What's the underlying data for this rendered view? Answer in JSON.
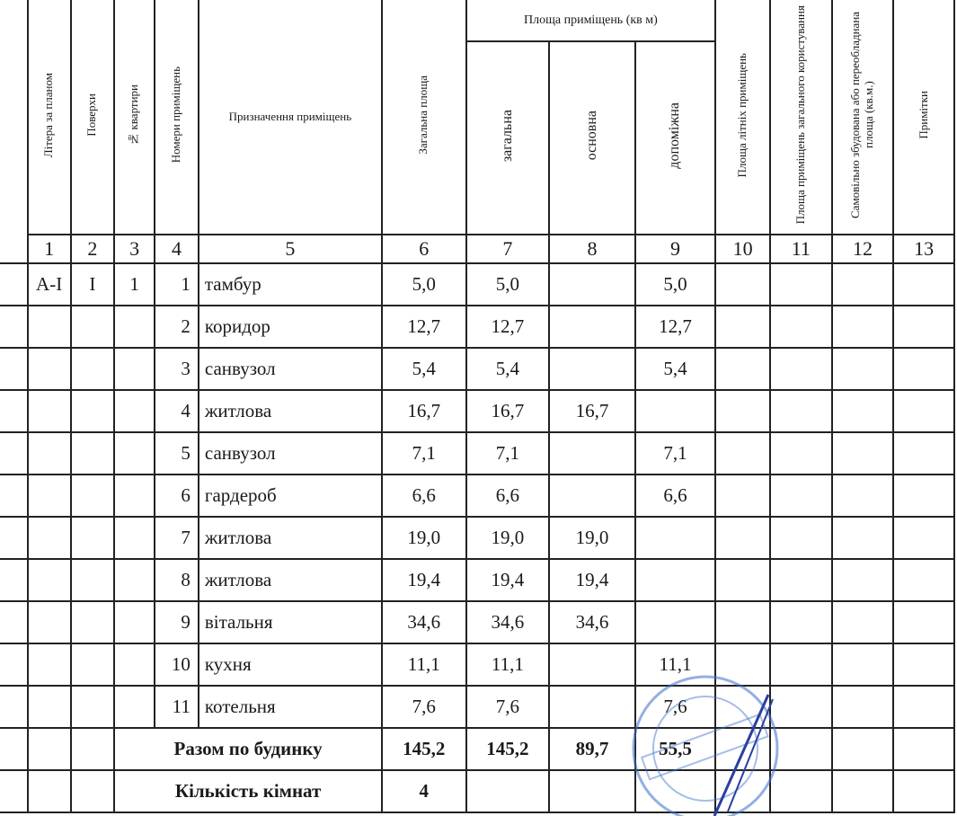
{
  "headers": {
    "c1": "Літера за планом",
    "c2": "Поверхи",
    "c3": "№ квартири",
    "c4": "Номери приміщень",
    "c5": "Призначення приміщень",
    "c6": "Загальна площа",
    "group": "Площа приміщень  (кв м)",
    "c7": "загальна",
    "c8": "основна",
    "c9": "допоміжна",
    "c10": "Площа літніх приміщень",
    "c11": "Площа  приміщень загального користування",
    "c12": "Самовільно збудована або переобладнана площа (кв.м.)",
    "c13": "Примітки"
  },
  "column_numbers": [
    "1",
    "2",
    "3",
    "4",
    "5",
    "6",
    "7",
    "8",
    "9",
    "10",
    "11",
    "12",
    "13"
  ],
  "rows": [
    {
      "litera": "А-І",
      "floor": "І",
      "apt": "1",
      "num": "1",
      "name": "тамбур",
      "total": "5,0",
      "general": "5,0",
      "main": "",
      "aux": "5,0"
    },
    {
      "litera": "",
      "floor": "",
      "apt": "",
      "num": "2",
      "name": "коридор",
      "total": "12,7",
      "general": "12,7",
      "main": "",
      "aux": "12,7"
    },
    {
      "litera": "",
      "floor": "",
      "apt": "",
      "num": "3",
      "name": "санвузол",
      "total": "5,4",
      "general": "5,4",
      "main": "",
      "aux": "5,4"
    },
    {
      "litera": "",
      "floor": "",
      "apt": "",
      "num": "4",
      "name": "житлова",
      "total": "16,7",
      "general": "16,7",
      "main": "16,7",
      "aux": ""
    },
    {
      "litera": "",
      "floor": "",
      "apt": "",
      "num": "5",
      "name": "санвузол",
      "total": "7,1",
      "general": "7,1",
      "main": "",
      "aux": "7,1"
    },
    {
      "litera": "",
      "floor": "",
      "apt": "",
      "num": "6",
      "name": "гардероб",
      "total": "6,6",
      "general": "6,6",
      "main": "",
      "aux": "6,6"
    },
    {
      "litera": "",
      "floor": "",
      "apt": "",
      "num": "7",
      "name": "житлова",
      "total": "19,0",
      "general": "19,0",
      "main": "19,0",
      "aux": ""
    },
    {
      "litera": "",
      "floor": "",
      "apt": "",
      "num": "8",
      "name": "житлова",
      "total": "19,4",
      "general": "19,4",
      "main": "19,4",
      "aux": ""
    },
    {
      "litera": "",
      "floor": "",
      "apt": "",
      "num": "9",
      "name": "вітальня",
      "total": "34,6",
      "general": "34,6",
      "main": "34,6",
      "aux": ""
    },
    {
      "litera": "",
      "floor": "",
      "apt": "",
      "num": "10",
      "name": "кухня",
      "total": "11,1",
      "general": "11,1",
      "main": "",
      "aux": "11,1"
    },
    {
      "litera": "",
      "floor": "",
      "apt": "",
      "num": "11",
      "name": "котельня",
      "total": "7,6",
      "general": "7,6",
      "main": "",
      "aux": "7,6"
    }
  ],
  "totals": {
    "label": "Разом по будинку",
    "total": "145,2",
    "general": "145,2",
    "main": "89,7",
    "aux": "55,5"
  },
  "rooms": {
    "label": "Кількість кімнат",
    "value": "4"
  },
  "stamp_color": "#3a6fc9"
}
